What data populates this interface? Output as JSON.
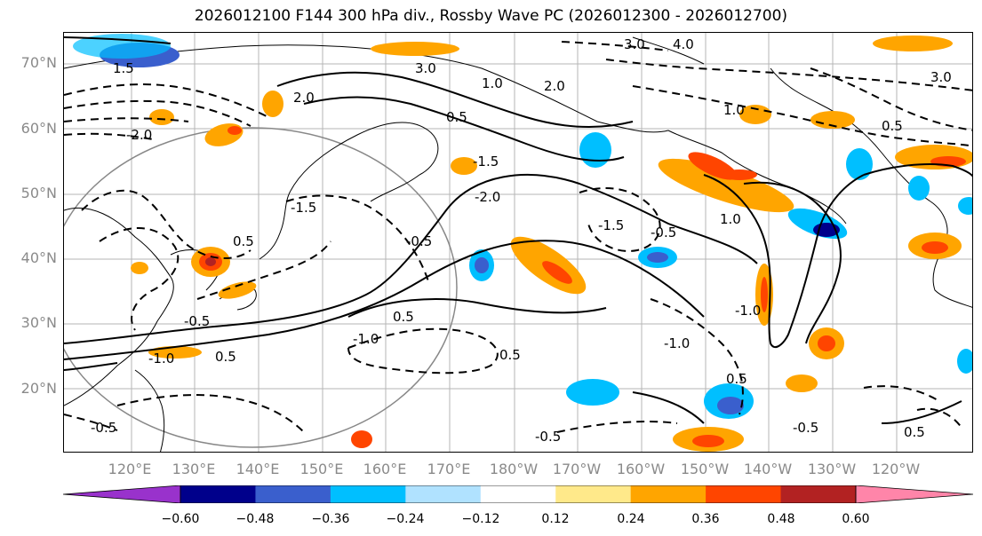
{
  "title": "2026012100 F144 300 hPa div., Rossby Wave PC (2026012300 - 2026012700)",
  "lat_labels": [
    "70°N",
    "60°N",
    "50°N",
    "40°N",
    "30°N",
    "20°N"
  ],
  "lon_labels": [
    "120°E",
    "130°E",
    "140°E",
    "150°E",
    "160°E",
    "170°E",
    "180°W",
    "170°W",
    "160°W",
    "150°W",
    "140°W",
    "130°W",
    "120°W"
  ],
  "contour_labels": [
    "3.0",
    "4.0",
    "1.5",
    "2.0",
    "1.0",
    "0.5",
    "-0.5",
    "-1.0",
    "-1.5",
    "-2.0"
  ],
  "colorbar": {
    "ticks": [
      "−0.60",
      "−0.48",
      "−0.36",
      "−0.24",
      "−0.12",
      "0.12",
      "0.24",
      "0.36",
      "0.48",
      "0.60"
    ],
    "colors": [
      "#9932cc",
      "#00008b",
      "#3a5fcd",
      "#00bfff",
      "#b0e2ff",
      "#ffffff",
      "#ffe98a",
      "#ffa500",
      "#ff4500",
      "#b22222",
      "#ff85a9"
    ]
  }
}
